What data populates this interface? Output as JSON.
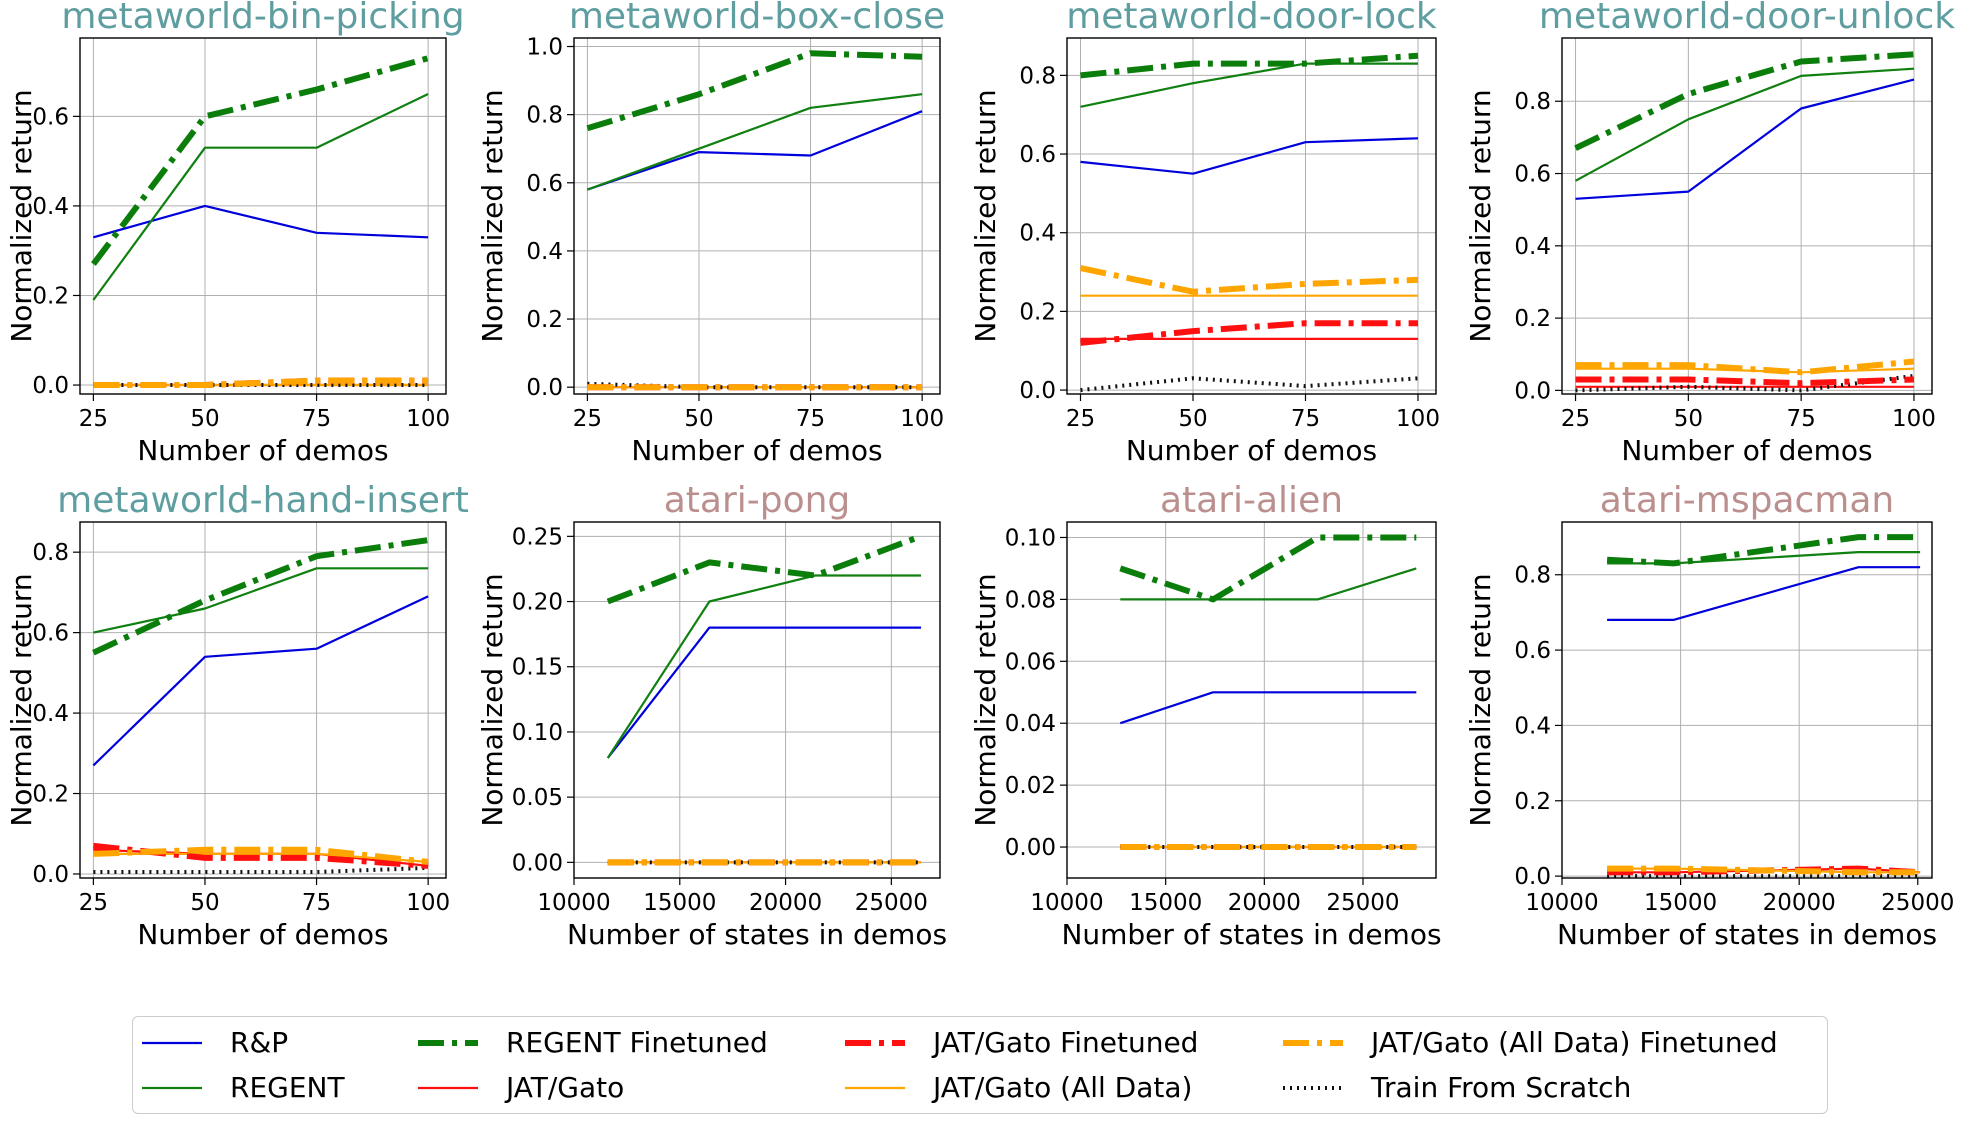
{
  "styles": {
    "rp": {
      "color": "#0000dd",
      "width": 2.2,
      "dash": ""
    },
    "regent": {
      "color": "#108010",
      "width": 2.2,
      "dash": ""
    },
    "regent_ft": {
      "color": "#0b7d0b",
      "width": 6,
      "dash": "26 8 5 8"
    },
    "jat": {
      "color": "#ff1010",
      "width": 2.2,
      "dash": ""
    },
    "jat_ft": {
      "color": "#ff1010",
      "width": 6,
      "dash": "26 8 5 8"
    },
    "jat_all": {
      "color": "#ffa500",
      "width": 2.2,
      "dash": ""
    },
    "jat_all_ft": {
      "color": "#ffa500",
      "width": 6,
      "dash": "26 8 5 8"
    },
    "scratch": {
      "color": "#111111",
      "width": 4,
      "dash": "2 5"
    }
  },
  "legend": [
    {
      "key": "rp",
      "label": "R&P"
    },
    {
      "key": "regent",
      "label": "REGENT"
    },
    {
      "key": "regent_ft",
      "label": "REGENT Finetuned"
    },
    {
      "key": "jat",
      "label": "JAT/Gato"
    },
    {
      "key": "jat_ft",
      "label": "JAT/Gato Finetuned"
    },
    {
      "key": "jat_all",
      "label": "JAT/Gato (All Data)"
    },
    {
      "key": "jat_all_ft",
      "label": "JAT/Gato (All Data) Finetuned"
    },
    {
      "key": "scratch",
      "label": "Train From Scratch"
    }
  ],
  "chart_data": [
    {
      "type": "line",
      "title": "metaworld-bin-picking",
      "title_color": "#5f9ea0",
      "xlabel": "Number of demos",
      "ylabel": "Normalized return",
      "xlim": [
        22,
        104
      ],
      "ylim": [
        -0.02,
        0.775
      ],
      "xticks": [
        "25",
        "50",
        "75",
        "100"
      ],
      "xtick_values": [
        25,
        50,
        75,
        100
      ],
      "yticks": [
        "0.0",
        "0.2",
        "0.4",
        "0.6"
      ],
      "ytick_values": [
        0,
        0.2,
        0.4,
        0.6
      ],
      "x": [
        25,
        50,
        75,
        100
      ],
      "series": [
        {
          "key": "rp",
          "name": "R&P",
          "values": [
            0.33,
            0.4,
            0.34,
            0.33
          ]
        },
        {
          "key": "regent",
          "name": "REGENT",
          "values": [
            0.19,
            0.53,
            0.53,
            0.65
          ]
        },
        {
          "key": "regent_ft",
          "name": "REGENT Finetuned",
          "values": [
            0.27,
            0.6,
            0.66,
            0.73
          ]
        },
        {
          "key": "jat",
          "name": "JAT/Gato",
          "values": [
            0.0,
            0.0,
            0.0,
            0.0
          ]
        },
        {
          "key": "jat_ft",
          "name": "JAT/Gato Finetuned",
          "values": [
            0.0,
            0.0,
            0.01,
            0.01
          ]
        },
        {
          "key": "jat_all",
          "name": "JAT/Gato (All Data)",
          "values": [
            0.0,
            0.0,
            0.0,
            0.0
          ]
        },
        {
          "key": "jat_all_ft",
          "name": "JAT/Gato (All Data) Finetuned",
          "values": [
            0.0,
            0.0,
            0.01,
            0.01
          ]
        },
        {
          "key": "scratch",
          "name": "Train From Scratch",
          "values": [
            0.0,
            0.0,
            0.0,
            0.0
          ]
        }
      ]
    },
    {
      "type": "line",
      "title": "metaworld-box-close",
      "title_color": "#5f9ea0",
      "xlabel": "Number of demos",
      "ylabel": "Normalized return",
      "xlim": [
        22,
        104
      ],
      "ylim": [
        -0.02,
        1.025
      ],
      "xticks": [
        "25",
        "50",
        "75",
        "100"
      ],
      "xtick_values": [
        25,
        50,
        75,
        100
      ],
      "yticks": [
        "0.0",
        "0.2",
        "0.4",
        "0.6",
        "0.8",
        "1.0"
      ],
      "ytick_values": [
        0,
        0.2,
        0.4,
        0.6,
        0.8,
        1.0
      ],
      "x": [
        25,
        50,
        75,
        100
      ],
      "series": [
        {
          "key": "rp",
          "name": "R&P",
          "values": [
            0.58,
            0.69,
            0.68,
            0.81
          ]
        },
        {
          "key": "regent",
          "name": "REGENT",
          "values": [
            0.58,
            0.7,
            0.82,
            0.86
          ]
        },
        {
          "key": "regent_ft",
          "name": "REGENT Finetuned",
          "values": [
            0.76,
            0.86,
            0.98,
            0.97
          ]
        },
        {
          "key": "jat",
          "name": "JAT/Gato",
          "values": [
            0.0,
            0.0,
            0.0,
            0.0
          ]
        },
        {
          "key": "jat_ft",
          "name": "JAT/Gato Finetuned",
          "values": [
            0.0,
            0.0,
            0.0,
            0.0
          ]
        },
        {
          "key": "jat_all",
          "name": "JAT/Gato (All Data)",
          "values": [
            0.0,
            0.0,
            0.0,
            0.0
          ]
        },
        {
          "key": "jat_all_ft",
          "name": "JAT/Gato (All Data) Finetuned",
          "values": [
            0.0,
            0.0,
            0.0,
            0.0
          ]
        },
        {
          "key": "scratch",
          "name": "Train From Scratch",
          "values": [
            0.01,
            0.0,
            0.0,
            0.0
          ]
        }
      ]
    },
    {
      "type": "line",
      "title": "metaworld-door-lock",
      "title_color": "#5f9ea0",
      "xlabel": "Number of demos",
      "ylabel": "Normalized return",
      "xlim": [
        22,
        104
      ],
      "ylim": [
        -0.01,
        0.895
      ],
      "xticks": [
        "25",
        "50",
        "75",
        "100"
      ],
      "xtick_values": [
        25,
        50,
        75,
        100
      ],
      "yticks": [
        "0.0",
        "0.2",
        "0.4",
        "0.6",
        "0.8"
      ],
      "ytick_values": [
        0,
        0.2,
        0.4,
        0.6,
        0.8
      ],
      "x": [
        25,
        50,
        75,
        100
      ],
      "series": [
        {
          "key": "rp",
          "name": "R&P",
          "values": [
            0.58,
            0.55,
            0.63,
            0.64
          ]
        },
        {
          "key": "regent",
          "name": "REGENT",
          "values": [
            0.72,
            0.78,
            0.83,
            0.83
          ]
        },
        {
          "key": "regent_ft",
          "name": "REGENT Finetuned",
          "values": [
            0.8,
            0.83,
            0.83,
            0.85
          ]
        },
        {
          "key": "jat",
          "name": "JAT/Gato",
          "values": [
            0.13,
            0.13,
            0.13,
            0.13
          ]
        },
        {
          "key": "jat_ft",
          "name": "JAT/Gato Finetuned",
          "values": [
            0.12,
            0.15,
            0.17,
            0.17
          ]
        },
        {
          "key": "jat_all",
          "name": "JAT/Gato (All Data)",
          "values": [
            0.24,
            0.24,
            0.24,
            0.24
          ]
        },
        {
          "key": "jat_all_ft",
          "name": "JAT/Gato (All Data) Finetuned",
          "values": [
            0.31,
            0.25,
            0.27,
            0.28
          ]
        },
        {
          "key": "scratch",
          "name": "Train From Scratch",
          "values": [
            0.0,
            0.03,
            0.01,
            0.03
          ]
        }
      ]
    },
    {
      "type": "line",
      "title": "metaworld-door-unlock",
      "title_color": "#5f9ea0",
      "xlabel": "Number of demos",
      "ylabel": "Normalized return",
      "xlim": [
        22,
        104
      ],
      "ylim": [
        -0.01,
        0.975
      ],
      "xticks": [
        "25",
        "50",
        "75",
        "100"
      ],
      "xtick_values": [
        25,
        50,
        75,
        100
      ],
      "yticks": [
        "0.0",
        "0.2",
        "0.4",
        "0.6",
        "0.8"
      ],
      "ytick_values": [
        0,
        0.2,
        0.4,
        0.6,
        0.8
      ],
      "x": [
        25,
        50,
        75,
        100
      ],
      "series": [
        {
          "key": "rp",
          "name": "R&P",
          "values": [
            0.53,
            0.55,
            0.78,
            0.86
          ]
        },
        {
          "key": "regent",
          "name": "REGENT",
          "values": [
            0.58,
            0.75,
            0.87,
            0.89
          ]
        },
        {
          "key": "regent_ft",
          "name": "REGENT Finetuned",
          "values": [
            0.67,
            0.82,
            0.91,
            0.93
          ]
        },
        {
          "key": "jat",
          "name": "JAT/Gato",
          "values": [
            0.01,
            0.01,
            0.01,
            0.01
          ]
        },
        {
          "key": "jat_ft",
          "name": "JAT/Gato Finetuned",
          "values": [
            0.03,
            0.03,
            0.02,
            0.03
          ]
        },
        {
          "key": "jat_all",
          "name": "JAT/Gato (All Data)",
          "values": [
            0.06,
            0.06,
            0.05,
            0.06
          ]
        },
        {
          "key": "jat_all_ft",
          "name": "JAT/Gato (All Data) Finetuned",
          "values": [
            0.07,
            0.07,
            0.05,
            0.08
          ]
        },
        {
          "key": "scratch",
          "name": "Train From Scratch",
          "values": [
            0.0,
            0.01,
            0.0,
            0.04
          ]
        }
      ]
    },
    {
      "type": "line",
      "title": "metaworld-hand-insert",
      "title_color": "#5f9ea0",
      "xlabel": "Number of demos",
      "ylabel": "Normalized return",
      "xlim": [
        22,
        104
      ],
      "ylim": [
        -0.01,
        0.875
      ],
      "xticks": [
        "25",
        "50",
        "75",
        "100"
      ],
      "xtick_values": [
        25,
        50,
        75,
        100
      ],
      "yticks": [
        "0.0",
        "0.2",
        "0.4",
        "0.6",
        "0.8"
      ],
      "ytick_values": [
        0,
        0.2,
        0.4,
        0.6,
        0.8
      ],
      "x": [
        25,
        50,
        75,
        100
      ],
      "series": [
        {
          "key": "rp",
          "name": "R&P",
          "values": [
            0.27,
            0.54,
            0.56,
            0.69
          ]
        },
        {
          "key": "regent",
          "name": "REGENT",
          "values": [
            0.6,
            0.66,
            0.76,
            0.76
          ]
        },
        {
          "key": "regent_ft",
          "name": "REGENT Finetuned",
          "values": [
            0.55,
            0.68,
            0.79,
            0.83
          ]
        },
        {
          "key": "jat",
          "name": "JAT/Gato",
          "values": [
            0.06,
            0.05,
            0.05,
            0.02
          ]
        },
        {
          "key": "jat_ft",
          "name": "JAT/Gato Finetuned",
          "values": [
            0.07,
            0.04,
            0.04,
            0.02
          ]
        },
        {
          "key": "jat_all",
          "name": "JAT/Gato (All Data)",
          "values": [
            0.05,
            0.05,
            0.05,
            0.03
          ]
        },
        {
          "key": "jat_all_ft",
          "name": "JAT/Gato (All Data) Finetuned",
          "values": [
            0.05,
            0.06,
            0.06,
            0.03
          ]
        },
        {
          "key": "scratch",
          "name": "Train From Scratch",
          "values": [
            0.005,
            0.005,
            0.005,
            0.015
          ]
        }
      ]
    },
    {
      "type": "line",
      "title": "atari-pong",
      "title_color": "#bc8f8f",
      "xlabel": "Number of states in demos",
      "ylabel": "Normalized return",
      "xlim": [
        10000,
        27300
      ],
      "ylim": [
        -0.012,
        0.261
      ],
      "xticks": [
        "10000",
        "15000",
        "20000",
        "25000"
      ],
      "xtick_values": [
        10000,
        15000,
        20000,
        25000
      ],
      "yticks": [
        "0.00",
        "0.05",
        "0.10",
        "0.15",
        "0.20",
        "0.25"
      ],
      "ytick_values": [
        0,
        0.05,
        0.1,
        0.15,
        0.2,
        0.25
      ],
      "x": [
        11600,
        16400,
        21400,
        26400
      ],
      "series": [
        {
          "key": "rp",
          "name": "R&P",
          "values": [
            0.08,
            0.18,
            0.18,
            0.18
          ]
        },
        {
          "key": "regent",
          "name": "REGENT",
          "values": [
            0.08,
            0.2,
            0.22,
            0.22
          ]
        },
        {
          "key": "regent_ft",
          "name": "REGENT Finetuned",
          "values": [
            0.2,
            0.23,
            0.22,
            0.25
          ]
        },
        {
          "key": "jat",
          "name": "JAT/Gato",
          "values": [
            0.0,
            0.0,
            0.0,
            0.0
          ]
        },
        {
          "key": "jat_ft",
          "name": "JAT/Gato Finetuned",
          "values": [
            0.0,
            0.0,
            0.0,
            0.0
          ]
        },
        {
          "key": "jat_all",
          "name": "JAT/Gato (All Data)",
          "values": [
            0.0,
            0.0,
            0.0,
            0.0
          ]
        },
        {
          "key": "jat_all_ft",
          "name": "JAT/Gato (All Data) Finetuned",
          "values": [
            0.0,
            0.0,
            0.0,
            0.0
          ]
        },
        {
          "key": "scratch",
          "name": "Train From Scratch",
          "values": [
            0.0,
            0.0,
            0.0,
            0.0
          ]
        }
      ]
    },
    {
      "type": "line",
      "title": "atari-alien",
      "title_color": "#bc8f8f",
      "xlabel": "Number of states in demos",
      "ylabel": "Normalized return",
      "xlim": [
        10000,
        28700
      ],
      "ylim": [
        -0.01,
        0.105
      ],
      "xticks": [
        "10000",
        "15000",
        "20000",
        "25000"
      ],
      "xtick_values": [
        10000,
        15000,
        20000,
        25000
      ],
      "yticks": [
        "0.00",
        "0.02",
        "0.04",
        "0.06",
        "0.08",
        "0.10"
      ],
      "ytick_values": [
        0,
        0.02,
        0.04,
        0.06,
        0.08,
        0.1
      ],
      "x": [
        12700,
        17400,
        22700,
        27700
      ],
      "series": [
        {
          "key": "rp",
          "name": "R&P",
          "values": [
            0.04,
            0.05,
            0.05,
            0.05
          ]
        },
        {
          "key": "regent",
          "name": "REGENT",
          "values": [
            0.08,
            0.08,
            0.08,
            0.09
          ]
        },
        {
          "key": "regent_ft",
          "name": "REGENT Finetuned",
          "values": [
            0.09,
            0.08,
            0.1,
            0.1
          ]
        },
        {
          "key": "jat",
          "name": "JAT/Gato",
          "values": [
            0.0,
            0.0,
            0.0,
            0.0
          ]
        },
        {
          "key": "jat_ft",
          "name": "JAT/Gato Finetuned",
          "values": [
            0.0,
            0.0,
            0.0,
            0.0
          ]
        },
        {
          "key": "jat_all",
          "name": "JAT/Gato (All Data)",
          "values": [
            0.0,
            0.0,
            0.0,
            0.0
          ]
        },
        {
          "key": "jat_all_ft",
          "name": "JAT/Gato (All Data) Finetuned",
          "values": [
            0.0,
            0.0,
            0.0,
            0.0
          ]
        },
        {
          "key": "scratch",
          "name": "Train From Scratch",
          "values": [
            0.0,
            0.0,
            0.0,
            0.0
          ]
        }
      ]
    },
    {
      "type": "line",
      "title": "atari-mspacman",
      "title_color": "#bc8f8f",
      "xlabel": "Number of states in demos",
      "ylabel": "Normalized return",
      "xlim": [
        10000,
        25600
      ],
      "ylim": [
        -0.005,
        0.94
      ],
      "xticks": [
        "10000",
        "15000",
        "20000",
        "25000"
      ],
      "xtick_values": [
        10000,
        15000,
        20000,
        25000
      ],
      "yticks": [
        "0.0",
        "0.2",
        "0.4",
        "0.6",
        "0.8"
      ],
      "ytick_values": [
        0,
        0.2,
        0.4,
        0.6,
        0.8
      ],
      "x": [
        11900,
        14700,
        22500,
        25100
      ],
      "series": [
        {
          "key": "rp",
          "name": "R&P",
          "values": [
            0.68,
            0.68,
            0.82,
            0.82
          ]
        },
        {
          "key": "regent",
          "name": "REGENT",
          "values": [
            0.83,
            0.83,
            0.86,
            0.86
          ]
        },
        {
          "key": "regent_ft",
          "name": "REGENT Finetuned",
          "values": [
            0.84,
            0.83,
            0.9,
            0.9
          ]
        },
        {
          "key": "jat",
          "name": "JAT/Gato",
          "values": [
            0.01,
            0.01,
            0.02,
            0.01
          ]
        },
        {
          "key": "jat_ft",
          "name": "JAT/Gato Finetuned",
          "values": [
            0.01,
            0.01,
            0.02,
            0.01
          ]
        },
        {
          "key": "jat_all",
          "name": "JAT/Gato (All Data)",
          "values": [
            0.02,
            0.02,
            0.01,
            0.01
          ]
        },
        {
          "key": "jat_all_ft",
          "name": "JAT/Gato (All Data) Finetuned",
          "values": [
            0.02,
            0.02,
            0.01,
            0.01
          ]
        },
        {
          "key": "scratch",
          "name": "Train From Scratch",
          "values": [
            0.0,
            0.0,
            0.0,
            0.0
          ]
        }
      ]
    }
  ]
}
